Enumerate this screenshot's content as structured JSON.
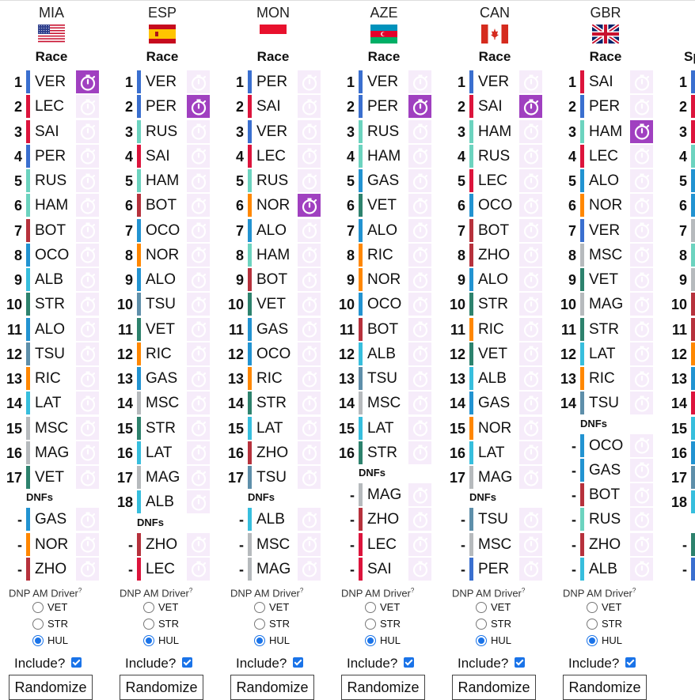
{
  "colors": {
    "VER": "#3a6fcf",
    "PER": "#3a6fcf",
    "LEC": "#dc143c",
    "SAI": "#dc143c",
    "RUS": "#6cd3bf",
    "HAM": "#6cd3bf",
    "BOT": "#b6313c",
    "ZHO": "#b6313c",
    "OCO": "#2293d1",
    "GAS": "#2293d1",
    "ALB": "#37bedd",
    "LAT": "#37bedd",
    "STR": "#2d826d",
    "VET": "#2d826d",
    "ALO": "#2293d1",
    "TSU": "#5e8faa",
    "NOR": "#ff8700",
    "RIC": "#ff8700",
    "MSC": "#b6babd",
    "MAG": "#b6babd",
    "fastest_lap_active": "#a040c0",
    "fastest_lap_inactive": "#f6ecfa"
  },
  "labels": {
    "race": "Race",
    "dnfs": "DNFs",
    "dnp": "DNP AM Driver",
    "dnp_sup": "?",
    "include": "Include?",
    "randomize": "Randomize",
    "dnf_pos": "-"
  },
  "races": [
    {
      "code": "MIA",
      "flag": "usa",
      "fastest_lap": "VER",
      "finishers": [
        "VER",
        "LEC",
        "SAI",
        "PER",
        "RUS",
        "HAM",
        "BOT",
        "OCO",
        "ALB",
        "STR",
        "ALO",
        "TSU",
        "RIC",
        "LAT",
        "MSC",
        "MAG",
        "VET"
      ],
      "dnfs": [
        "GAS",
        "NOR",
        "ZHO"
      ],
      "dnp_options": [
        "VET",
        "STR",
        "HUL"
      ],
      "dnp_selected": "HUL",
      "include": true
    },
    {
      "code": "ESP",
      "flag": "spain",
      "fastest_lap": "PER",
      "finishers": [
        "VER",
        "PER",
        "RUS",
        "SAI",
        "HAM",
        "BOT",
        "OCO",
        "NOR",
        "ALO",
        "TSU",
        "VET",
        "RIC",
        "GAS",
        "MSC",
        "STR",
        "LAT",
        "MAG",
        "ALB"
      ],
      "dnfs": [
        "ZHO",
        "LEC"
      ],
      "dnp_options": [
        "VET",
        "STR",
        "HUL"
      ],
      "dnp_selected": "HUL",
      "include": true
    },
    {
      "code": "MON",
      "flag": "monaco",
      "fastest_lap": "NOR",
      "finishers": [
        "PER",
        "SAI",
        "VER",
        "LEC",
        "RUS",
        "NOR",
        "ALO",
        "HAM",
        "BOT",
        "VET",
        "GAS",
        "OCO",
        "RIC",
        "STR",
        "LAT",
        "ZHO",
        "TSU"
      ],
      "dnfs": [
        "ALB",
        "MSC",
        "MAG"
      ],
      "dnp_options": [
        "VET",
        "STR",
        "HUL"
      ],
      "dnp_selected": "HUL",
      "include": true
    },
    {
      "code": "AZE",
      "flag": "azerbaijan",
      "fastest_lap": "PER",
      "finishers": [
        "VER",
        "PER",
        "RUS",
        "HAM",
        "GAS",
        "VET",
        "ALO",
        "RIC",
        "NOR",
        "OCO",
        "BOT",
        "ALB",
        "TSU",
        "MSC",
        "LAT",
        "STR"
      ],
      "dnfs": [
        "MAG",
        "ZHO",
        "LEC",
        "SAI"
      ],
      "dnp_options": [
        "VET",
        "STR",
        "HUL"
      ],
      "dnp_selected": "HUL",
      "include": true
    },
    {
      "code": "CAN",
      "flag": "canada",
      "fastest_lap": "SAI",
      "finishers": [
        "VER",
        "SAI",
        "HAM",
        "RUS",
        "LEC",
        "OCO",
        "BOT",
        "ZHO",
        "ALO",
        "STR",
        "RIC",
        "VET",
        "ALB",
        "GAS",
        "NOR",
        "LAT",
        "MAG"
      ],
      "dnfs": [
        "TSU",
        "MSC",
        "PER"
      ],
      "dnp_options": [
        "VET",
        "STR",
        "HUL"
      ],
      "dnp_selected": "HUL",
      "include": true
    },
    {
      "code": "GBR",
      "flag": "uk",
      "fastest_lap": "HAM",
      "finishers": [
        "SAI",
        "PER",
        "HAM",
        "LEC",
        "ALO",
        "NOR",
        "VER",
        "MSC",
        "VET",
        "MAG",
        "STR",
        "LAT",
        "RIC",
        "TSU"
      ],
      "dnfs": [
        "OCO",
        "GAS",
        "BOT",
        "RUS",
        "ZHO",
        "ALB"
      ],
      "dnp_options": [
        "VET",
        "STR",
        "HUL"
      ],
      "dnp_selected": "HUL",
      "include": true
    }
  ],
  "partial_column": {
    "code_partial": "Sp",
    "positions": [
      "1",
      "2",
      "3",
      "4",
      "5",
      "6",
      "7",
      "8",
      "9",
      "10",
      "11",
      "12",
      "13",
      "14",
      "15",
      "16",
      "17",
      "18"
    ],
    "bar_colors": [
      "#3a6fcf",
      "#dc143c",
      "#dc143c",
      "#6cd3bf",
      "#2293d1",
      "#2293d1",
      "#b6babd",
      "#6cd3bf",
      "#b6babd",
      "#b6313c",
      "#b6313c",
      "#ff8700",
      "#2293d1",
      "#dc143c",
      "#37bedd",
      "#2293d1",
      "#5e8faa",
      "#37bedd"
    ],
    "dnf_bars": [
      "#2d826d",
      "#3a6fcf"
    ]
  }
}
